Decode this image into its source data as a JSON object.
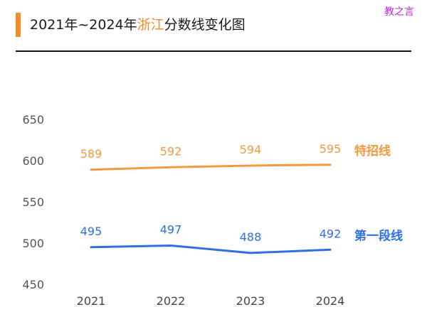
{
  "title": {
    "prefix": "2021年~2024年",
    "highlight": "浙江",
    "suffix": "分数线变化图",
    "accent_color": "#f28c28"
  },
  "watermark": "教之言",
  "chart_data": {
    "type": "line",
    "categories": [
      "2021",
      "2022",
      "2023",
      "2024"
    ],
    "ylim": [
      450,
      650
    ],
    "yticks": [
      650,
      600,
      550,
      500,
      450
    ],
    "grid": false,
    "legend": "right-end labels",
    "series": [
      {
        "name": "特招线",
        "values": [
          589,
          592,
          594,
          595
        ],
        "color": "#f39a3e"
      },
      {
        "name": "第一段线",
        "values": [
          495,
          497,
          488,
          492
        ],
        "color": "#2f6fe4"
      }
    ]
  }
}
